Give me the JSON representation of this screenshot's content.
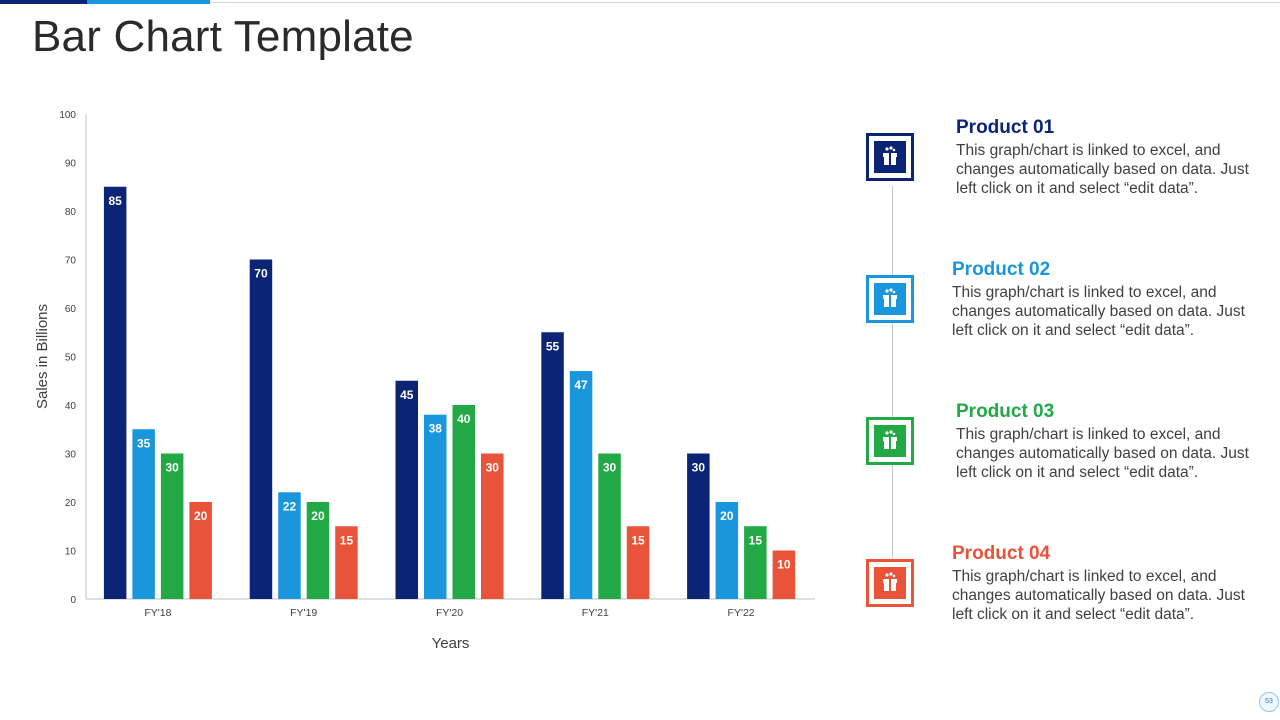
{
  "title": "Bar Chart Template",
  "page_number": "53",
  "colors": {
    "product1": "#0b2476",
    "product2": "#1a96dd",
    "product3": "#22a845",
    "product4": "#e9533a"
  },
  "legend": [
    {
      "name": "Product 01",
      "desc": "This graph/chart is linked to excel, and changes automatically based on data. Just left click on it and select “edit data”.",
      "icon": "gift-icon"
    },
    {
      "name": "Product 02",
      "desc": "This graph/chart is linked to excel, and changes automatically based on data. Just left click on it and select “edit data”.",
      "icon": "gift-icon"
    },
    {
      "name": "Product 03",
      "desc": "This graph/chart is linked to excel, and changes automatically based on data. Just left click on it and select “edit data”.",
      "icon": "gift-icon"
    },
    {
      "name": "Product 04",
      "desc": "This graph/chart is linked to excel, and changes automatically based on data. Just left click on it and select “edit data”.",
      "icon": "gift-icon"
    }
  ],
  "chart_data": {
    "type": "bar",
    "categories": [
      "FY'18",
      "FY'19",
      "FY'20",
      "FY'21",
      "FY'22"
    ],
    "series": [
      {
        "name": "Product 01",
        "values": [
          85,
          70,
          45,
          55,
          30
        ]
      },
      {
        "name": "Product 02",
        "values": [
          35,
          22,
          38,
          47,
          20
        ]
      },
      {
        "name": "Product 03",
        "values": [
          30,
          20,
          40,
          30,
          15
        ]
      },
      {
        "name": "Product 04",
        "values": [
          20,
          15,
          30,
          15,
          10
        ]
      }
    ],
    "title": "",
    "xlabel": "Years",
    "ylabel": "Sales in Billions",
    "ylim": [
      0,
      100
    ],
    "yticks": [
      0,
      10,
      20,
      30,
      40,
      50,
      60,
      70,
      80,
      90,
      100
    ]
  }
}
